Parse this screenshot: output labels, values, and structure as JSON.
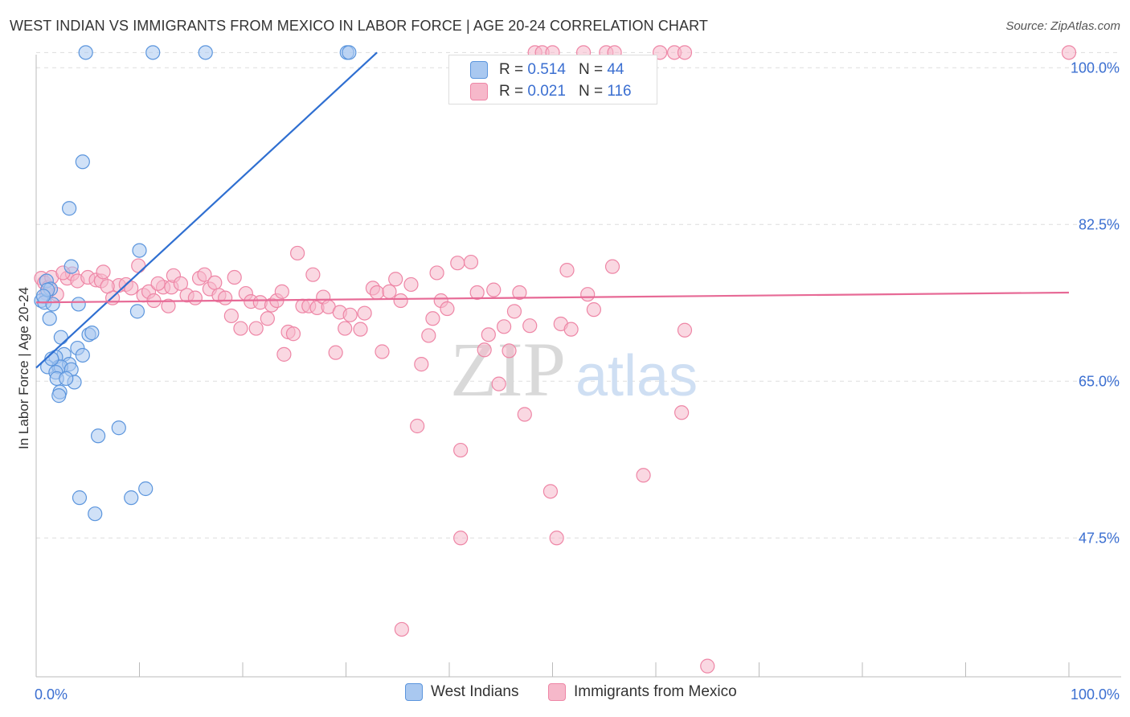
{
  "header": {
    "title": "WEST INDIAN VS IMMIGRANTS FROM MEXICO IN LABOR FORCE | AGE 20-24 CORRELATION CHART",
    "source": "Source: ZipAtlas.com"
  },
  "watermark": {
    "zip": "ZIP",
    "atlas": "atlas"
  },
  "colors": {
    "blue_fill": "#a9c8f0",
    "blue_stroke": "#5b95dd",
    "blue_line": "#2f6fd1",
    "pink_fill": "#f6b8ca",
    "pink_stroke": "#ee86a6",
    "pink_line": "#e76a96",
    "axis_label": "#3b6fd1",
    "grid": "#dddddd"
  },
  "stats_legend": {
    "rows": [
      {
        "r_label": "R =",
        "r_value": "0.514",
        "n_label": "N =",
        "n_value": "44"
      },
      {
        "r_label": "R =",
        "r_value": "0.021",
        "n_label": "N =",
        "n_value": "116"
      }
    ]
  },
  "legend": {
    "items": [
      {
        "label": "West Indians"
      },
      {
        "label": "Immigrants from Mexico"
      }
    ]
  },
  "chart_data": {
    "type": "scatter",
    "title": "WEST INDIAN VS IMMIGRANTS FROM MEXICO IN LABOR FORCE | AGE 20-24 CORRELATION CHART",
    "xlabel": "",
    "ylabel": "In Labor Force | Age 20-24",
    "xlim": [
      0,
      100
    ],
    "ylim": [
      32,
      102
    ],
    "x_tick_labels": [
      {
        "value": 0,
        "label": "0.0%"
      },
      {
        "value": 100,
        "label": "100.0%"
      }
    ],
    "y_tick_labels": [
      {
        "value": 100,
        "label": "100.0%"
      },
      {
        "value": 82.5,
        "label": "82.5%"
      },
      {
        "value": 65,
        "label": "65.0%"
      },
      {
        "value": 47.5,
        "label": "47.5%"
      }
    ],
    "grid": true,
    "series": [
      {
        "name": "West Indians",
        "r": 0.514,
        "n": 44,
        "trend": {
          "x0": 0,
          "y0": 66.5,
          "x1": 33,
          "y1": 101.7
        },
        "points": [
          [
            4.8,
            101.7
          ],
          [
            11.3,
            101.7
          ],
          [
            16.4,
            101.7
          ],
          [
            30.1,
            101.7
          ],
          [
            30.3,
            101.7
          ],
          [
            4.5,
            89.5
          ],
          [
            3.2,
            84.3
          ],
          [
            10.0,
            79.6
          ],
          [
            3.4,
            77.8
          ],
          [
            1.0,
            76.2
          ],
          [
            1.4,
            75.3
          ],
          [
            0.5,
            74.0
          ],
          [
            0.8,
            73.8
          ],
          [
            1.1,
            75.2
          ],
          [
            1.6,
            73.6
          ],
          [
            4.1,
            73.6
          ],
          [
            9.8,
            72.8
          ],
          [
            1.3,
            72.0
          ],
          [
            5.1,
            70.2
          ],
          [
            5.4,
            70.4
          ],
          [
            2.4,
            69.9
          ],
          [
            4.0,
            68.7
          ],
          [
            2.7,
            68.0
          ],
          [
            4.5,
            67.9
          ],
          [
            1.9,
            67.7
          ],
          [
            1.1,
            66.6
          ],
          [
            2.2,
            66.6
          ],
          [
            3.2,
            66.9
          ],
          [
            2.4,
            66.6
          ],
          [
            1.9,
            66.0
          ],
          [
            3.4,
            66.3
          ],
          [
            2.0,
            65.3
          ],
          [
            3.7,
            64.9
          ],
          [
            2.9,
            65.3
          ],
          [
            2.3,
            63.8
          ],
          [
            2.2,
            63.4
          ],
          [
            8.0,
            59.8
          ],
          [
            6.0,
            58.9
          ],
          [
            10.6,
            53.0
          ],
          [
            4.2,
            52.0
          ],
          [
            9.2,
            52.0
          ],
          [
            5.7,
            50.2
          ],
          [
            0.7,
            74.5
          ],
          [
            1.5,
            67.5
          ]
        ]
      },
      {
        "name": "Immigrants from Mexico",
        "r": 0.021,
        "n": 116,
        "trend": {
          "x0": 0,
          "y0": 73.8,
          "x1": 100,
          "y1": 74.9
        },
        "points": [
          [
            0.5,
            76.5
          ],
          [
            0.8,
            76.0
          ],
          [
            1.2,
            75.5
          ],
          [
            1.5,
            76.6
          ],
          [
            2.0,
            74.7
          ],
          [
            3.0,
            76.5
          ],
          [
            3.5,
            77.0
          ],
          [
            4.0,
            76.2
          ],
          [
            5.0,
            76.6
          ],
          [
            5.8,
            76.3
          ],
          [
            6.3,
            76.2
          ],
          [
            6.5,
            77.2
          ],
          [
            7.4,
            74.3
          ],
          [
            8.0,
            75.7
          ],
          [
            8.7,
            75.8
          ],
          [
            9.2,
            75.4
          ],
          [
            9.9,
            77.9
          ],
          [
            10.4,
            74.6
          ],
          [
            10.9,
            75.0
          ],
          [
            11.4,
            74.0
          ],
          [
            12.3,
            75.5
          ],
          [
            12.8,
            73.4
          ],
          [
            13.1,
            75.5
          ],
          [
            13.3,
            76.8
          ],
          [
            14.0,
            75.9
          ],
          [
            14.6,
            74.6
          ],
          [
            15.4,
            74.3
          ],
          [
            15.8,
            76.5
          ],
          [
            16.3,
            76.9
          ],
          [
            16.8,
            75.3
          ],
          [
            17.3,
            76.0
          ],
          [
            17.7,
            74.6
          ],
          [
            18.3,
            74.3
          ],
          [
            18.9,
            72.3
          ],
          [
            19.2,
            76.6
          ],
          [
            19.8,
            70.9
          ],
          [
            20.3,
            74.8
          ],
          [
            20.8,
            73.9
          ],
          [
            21.3,
            70.9
          ],
          [
            21.7,
            73.8
          ],
          [
            22.4,
            72.0
          ],
          [
            22.8,
            73.5
          ],
          [
            23.3,
            74.0
          ],
          [
            23.8,
            75.0
          ],
          [
            24.0,
            68.0
          ],
          [
            24.4,
            70.5
          ],
          [
            24.9,
            70.3
          ],
          [
            25.3,
            79.3
          ],
          [
            25.8,
            73.4
          ],
          [
            26.4,
            73.4
          ],
          [
            26.8,
            76.9
          ],
          [
            27.2,
            73.2
          ],
          [
            27.8,
            74.4
          ],
          [
            28.3,
            73.3
          ],
          [
            29.0,
            68.2
          ],
          [
            29.4,
            72.7
          ],
          [
            29.9,
            70.9
          ],
          [
            30.4,
            72.4
          ],
          [
            31.4,
            70.8
          ],
          [
            31.8,
            72.6
          ],
          [
            32.6,
            75.4
          ],
          [
            33.0,
            74.9
          ],
          [
            33.5,
            68.3
          ],
          [
            34.2,
            75.0
          ],
          [
            34.8,
            76.4
          ],
          [
            35.3,
            74.0
          ],
          [
            36.3,
            75.8
          ],
          [
            36.9,
            60.0
          ],
          [
            37.3,
            66.9
          ],
          [
            38.0,
            70.1
          ],
          [
            38.4,
            72.0
          ],
          [
            38.8,
            77.1
          ],
          [
            39.2,
            74.0
          ],
          [
            39.8,
            73.1
          ],
          [
            40.8,
            78.2
          ],
          [
            41.1,
            57.3
          ],
          [
            42.1,
            78.3
          ],
          [
            42.7,
            74.9
          ],
          [
            43.4,
            68.5
          ],
          [
            43.8,
            70.2
          ],
          [
            44.3,
            75.2
          ],
          [
            44.8,
            64.7
          ],
          [
            45.3,
            71.1
          ],
          [
            45.8,
            68.4
          ],
          [
            46.3,
            72.8
          ],
          [
            46.8,
            74.9
          ],
          [
            47.3,
            61.3
          ],
          [
            47.8,
            71.2
          ],
          [
            48.3,
            101.7
          ],
          [
            49.0,
            101.7
          ],
          [
            49.8,
            52.7
          ],
          [
            50.4,
            47.5
          ],
          [
            50.8,
            71.4
          ],
          [
            51.4,
            77.4
          ],
          [
            51.8,
            70.8
          ],
          [
            53.0,
            101.7
          ],
          [
            53.4,
            74.7
          ],
          [
            54.0,
            73.0
          ],
          [
            55.2,
            101.7
          ],
          [
            55.8,
            77.8
          ],
          [
            58.8,
            54.5
          ],
          [
            60.4,
            101.7
          ],
          [
            61.8,
            101.7
          ],
          [
            62.8,
            101.7
          ],
          [
            62.5,
            61.5
          ],
          [
            62.8,
            70.7
          ],
          [
            65.0,
            33.2
          ],
          [
            100.0,
            101.7
          ],
          [
            41.1,
            47.5
          ],
          [
            35.4,
            37.3
          ],
          [
            50.0,
            101.7
          ],
          [
            56.0,
            101.7
          ],
          [
            1.0,
            74.8
          ],
          [
            2.6,
            77.1
          ],
          [
            6.9,
            75.6
          ],
          [
            11.8,
            75.9
          ]
        ]
      }
    ]
  }
}
